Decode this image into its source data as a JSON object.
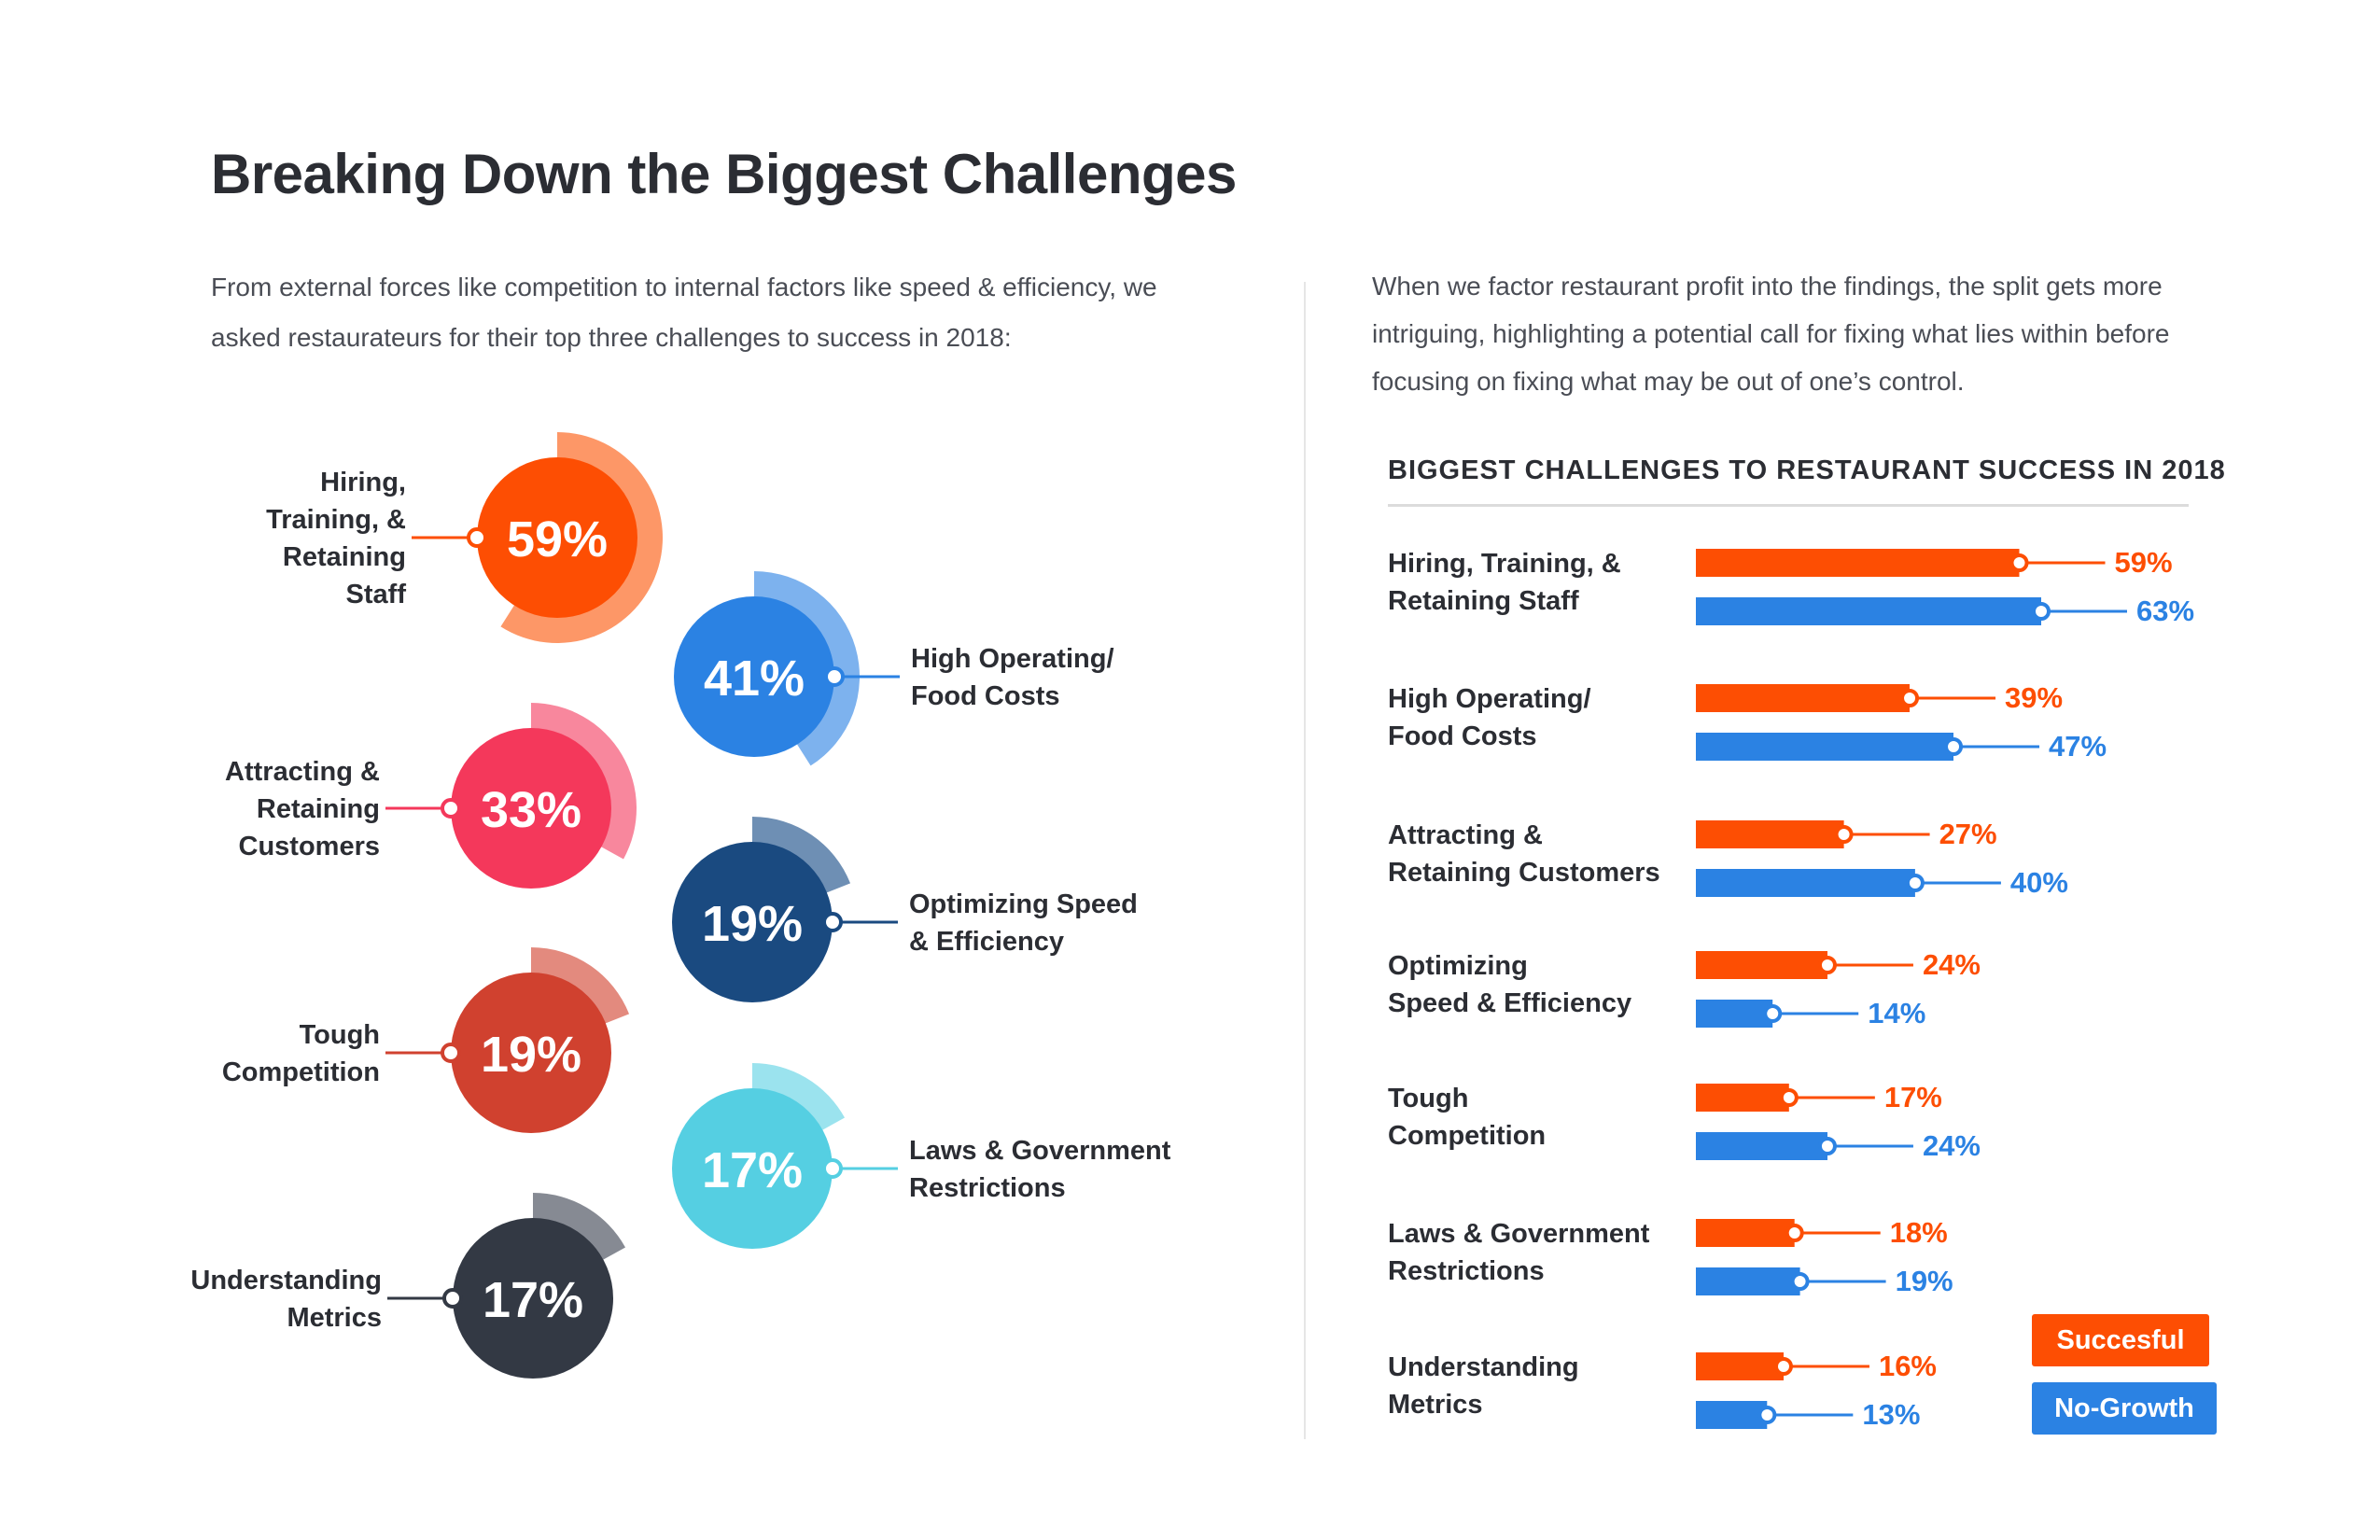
{
  "header": {
    "title": "Breaking Down the Biggest Challenges"
  },
  "intro_left": "From external forces like competition to internal factors like speed & efficiency, we asked restaurateurs for their top three challenges to success in 2018:",
  "intro_right": "When we factor restaurant profit into the findings, the split gets more intriguing, highlighting a potential call for fixing what lies within before focusing on fixing what may be out of one’s control.",
  "legend": {
    "successful": "Succesful",
    "no_growth": "No-Growth"
  },
  "colors": {
    "successful": "#fd4e03",
    "no_growth": "#2b82e3",
    "text_dark": "#2b2d33"
  },
  "chart_data": [
    {
      "type": "pie",
      "items": [
        {
          "label": [
            "Hiring,",
            "Training, &",
            "Retaining",
            "Staff"
          ],
          "value": 59,
          "display": "59%",
          "color": "#fd4e03",
          "ring": "#fd9767",
          "side": "left"
        },
        {
          "label": [
            "High Operating/",
            "Food Costs"
          ],
          "value": 41,
          "display": "41%",
          "color": "#2b82e3",
          "ring": "#7db2ee",
          "side": "right"
        },
        {
          "label": [
            "Attracting &",
            "Retaining",
            "Customers"
          ],
          "value": 33,
          "display": "33%",
          "color": "#f4385b",
          "ring": "#f8879d",
          "side": "left"
        },
        {
          "label": [
            "Optimizing Speed",
            "& Efficiency"
          ],
          "value": 19,
          "display": "19%",
          "color": "#1a4a80",
          "ring": "#6e8fb4",
          "side": "right"
        },
        {
          "label": [
            "Tough",
            "Competition"
          ],
          "value": 19,
          "display": "19%",
          "color": "#d0412f",
          "ring": "#e38a7e",
          "side": "left"
        },
        {
          "label": [
            "Laws & Government",
            "Restrictions"
          ],
          "value": 17,
          "display": "17%",
          "color": "#55cfe2",
          "ring": "#9be3ee",
          "side": "right"
        },
        {
          "label": [
            "Understanding",
            "Metrics"
          ],
          "value": 17,
          "display": "17%",
          "color": "#333944",
          "ring": "#868a93",
          "side": "left"
        }
      ]
    },
    {
      "type": "bar",
      "title": "BIGGEST CHALLENGES TO RESTAURANT SUCCESS IN 2018",
      "categories": [
        [
          "Hiring, Training, &",
          "Retaining Staff"
        ],
        [
          "High Operating/",
          "Food Costs"
        ],
        [
          "Attracting &",
          "Retaining Customers"
        ],
        [
          "Optimizing",
          "Speed & Efficiency"
        ],
        [
          "Tough",
          "Competition"
        ],
        [
          "Laws & Government",
          "Restrictions"
        ],
        [
          "Understanding",
          "Metrics"
        ]
      ],
      "series": [
        {
          "name": "Succesful",
          "values": [
            59,
            39,
            27,
            24,
            17,
            18,
            16
          ],
          "color": "#fd4e03"
        },
        {
          "name": "No-Growth",
          "values": [
            63,
            47,
            40,
            14,
            24,
            19,
            13
          ],
          "color": "#2b82e3"
        }
      ],
      "xlim": [
        0,
        63
      ],
      "legend": "bottom-right"
    }
  ]
}
